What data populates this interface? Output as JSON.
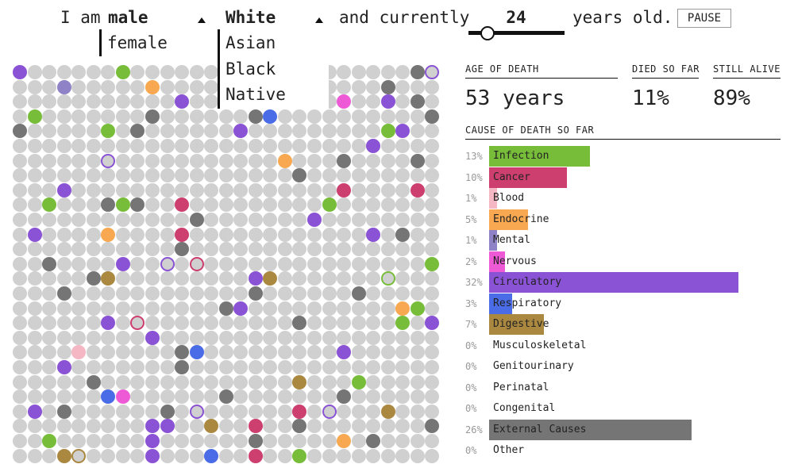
{
  "controls": {
    "prefix": "I am",
    "sex_selected": "male",
    "sex_options": [
      "female"
    ],
    "race_selected": "White",
    "race_options": [
      "Asian",
      "Black",
      "Native"
    ],
    "middle_text": "and currently",
    "age": "24",
    "suffix": "years old.",
    "pause_label": "PAUSE",
    "age_slider_value": 24,
    "age_slider_max": 120
  },
  "stats": {
    "age_label": "AGE OF DEATH",
    "age_value": "53 years",
    "died_label": "DIED SO FAR",
    "died_value": "11%",
    "alive_label": "STILL ALIVE",
    "alive_value": "89%"
  },
  "colors": {
    "Infection": "#77bd3a",
    "Cancer": "#cd3f6e",
    "Blood": "#f4b7c3",
    "Endocrine": "#f7a850",
    "Mental": "#9082c6",
    "Nervous": "#ee5ad6",
    "Circulatory": "#8a52d4",
    "Respiratory": "#4a6ce6",
    "Digestive": "#ab8840",
    "External Causes": "#757575"
  },
  "causes": {
    "title": "CAUSE OF DEATH SO FAR",
    "items": [
      {
        "pct": "13%",
        "name": "Infection",
        "value": 13,
        "color": "#77bd3a"
      },
      {
        "pct": "10%",
        "name": "Cancer",
        "value": 10,
        "color": "#cd3f6e"
      },
      {
        "pct": "1%",
        "name": "Blood",
        "value": 1,
        "color": "#f4b7c3"
      },
      {
        "pct": "5%",
        "name": "Endocrine",
        "value": 5,
        "color": "#f7a850"
      },
      {
        "pct": "1%",
        "name": "Mental",
        "value": 1,
        "color": "#9082c6"
      },
      {
        "pct": "2%",
        "name": "Nervous",
        "value": 2,
        "color": "#ee5ad6"
      },
      {
        "pct": "32%",
        "name": "Circulatory",
        "value": 32,
        "color": "#8a52d4"
      },
      {
        "pct": "3%",
        "name": "Respiratory",
        "value": 3,
        "color": "#4a6ce6"
      },
      {
        "pct": "7%",
        "name": "Digestive",
        "value": 7,
        "color": "#ab8840"
      },
      {
        "pct": "0%",
        "name": "Musculoskeletal",
        "value": 0,
        "color": "#cccccc"
      },
      {
        "pct": "0%",
        "name": "Genitourinary",
        "value": 0,
        "color": "#cccccc"
      },
      {
        "pct": "0%",
        "name": "Perinatal",
        "value": 0,
        "color": "#cccccc"
      },
      {
        "pct": "0%",
        "name": "Congenital",
        "value": 0,
        "color": "#cccccc"
      },
      {
        "pct": "26%",
        "name": "External Causes",
        "value": 26,
        "color": "#757575"
      },
      {
        "pct": "0%",
        "name": "Other",
        "value": 0,
        "color": "#cccccc"
      }
    ]
  },
  "population": {
    "columns": 29,
    "rows": 27,
    "dead_people": [
      {
        "row": 0,
        "col": 0,
        "cause": "Circulatory"
      },
      {
        "row": 0,
        "col": 7,
        "cause": "Infection"
      },
      {
        "row": 0,
        "col": 27,
        "cause": "External Causes"
      },
      {
        "row": 0,
        "col": 28,
        "cause": "Circulatory",
        "ring": true
      },
      {
        "row": 1,
        "col": 3,
        "cause": "Mental"
      },
      {
        "row": 1,
        "col": 9,
        "cause": "Endocrine"
      },
      {
        "row": 1,
        "col": 25,
        "cause": "External Causes"
      },
      {
        "row": 2,
        "col": 11,
        "cause": "Circulatory"
      },
      {
        "row": 2,
        "col": 22,
        "cause": "Nervous"
      },
      {
        "row": 2,
        "col": 25,
        "cause": "Circulatory"
      },
      {
        "row": 2,
        "col": 27,
        "cause": "External Causes"
      },
      {
        "row": 3,
        "col": 1,
        "cause": "Infection"
      },
      {
        "row": 3,
        "col": 9,
        "cause": "External Causes"
      },
      {
        "row": 3,
        "col": 16,
        "cause": "External Causes"
      },
      {
        "row": 3,
        "col": 17,
        "cause": "Respiratory"
      },
      {
        "row": 3,
        "col": 28,
        "cause": "External Causes"
      },
      {
        "row": 4,
        "col": 0,
        "cause": "External Causes"
      },
      {
        "row": 4,
        "col": 6,
        "cause": "Infection"
      },
      {
        "row": 4,
        "col": 8,
        "cause": "External Causes"
      },
      {
        "row": 4,
        "col": 15,
        "cause": "Circulatory"
      },
      {
        "row": 4,
        "col": 25,
        "cause": "Infection"
      },
      {
        "row": 4,
        "col": 26,
        "cause": "Circulatory"
      },
      {
        "row": 5,
        "col": 24,
        "cause": "Circulatory"
      },
      {
        "row": 6,
        "col": 6,
        "cause": "Circulatory",
        "ring": true
      },
      {
        "row": 6,
        "col": 18,
        "cause": "Endocrine"
      },
      {
        "row": 6,
        "col": 22,
        "cause": "External Causes"
      },
      {
        "row": 6,
        "col": 27,
        "cause": "External Causes"
      },
      {
        "row": 7,
        "col": 19,
        "cause": "External Causes"
      },
      {
        "row": 8,
        "col": 3,
        "cause": "Circulatory"
      },
      {
        "row": 8,
        "col": 22,
        "cause": "Cancer"
      },
      {
        "row": 8,
        "col": 27,
        "cause": "Cancer"
      },
      {
        "row": 9,
        "col": 2,
        "cause": "Infection"
      },
      {
        "row": 9,
        "col": 6,
        "cause": "External Causes"
      },
      {
        "row": 9,
        "col": 7,
        "cause": "Infection"
      },
      {
        "row": 9,
        "col": 8,
        "cause": "External Causes"
      },
      {
        "row": 9,
        "col": 11,
        "cause": "Cancer"
      },
      {
        "row": 9,
        "col": 21,
        "cause": "Infection"
      },
      {
        "row": 10,
        "col": 12,
        "cause": "External Causes"
      },
      {
        "row": 10,
        "col": 20,
        "cause": "Circulatory"
      },
      {
        "row": 11,
        "col": 1,
        "cause": "Circulatory"
      },
      {
        "row": 11,
        "col": 6,
        "cause": "Endocrine"
      },
      {
        "row": 11,
        "col": 11,
        "cause": "Cancer"
      },
      {
        "row": 11,
        "col": 24,
        "cause": "Circulatory"
      },
      {
        "row": 11,
        "col": 26,
        "cause": "External Causes"
      },
      {
        "row": 12,
        "col": 11,
        "cause": "External Causes"
      },
      {
        "row": 13,
        "col": 2,
        "cause": "External Causes"
      },
      {
        "row": 13,
        "col": 7,
        "cause": "Circulatory"
      },
      {
        "row": 13,
        "col": 10,
        "cause": "Circulatory",
        "ring": true
      },
      {
        "row": 13,
        "col": 12,
        "cause": "Cancer",
        "ring": true
      },
      {
        "row": 13,
        "col": 28,
        "cause": "Infection"
      },
      {
        "row": 14,
        "col": 5,
        "cause": "External Causes"
      },
      {
        "row": 14,
        "col": 6,
        "cause": "Digestive"
      },
      {
        "row": 14,
        "col": 16,
        "cause": "Circulatory"
      },
      {
        "row": 14,
        "col": 17,
        "cause": "Digestive"
      },
      {
        "row": 14,
        "col": 25,
        "cause": "Infection",
        "ring": true
      },
      {
        "row": 15,
        "col": 3,
        "cause": "External Causes"
      },
      {
        "row": 15,
        "col": 16,
        "cause": "External Causes"
      },
      {
        "row": 15,
        "col": 23,
        "cause": "External Causes"
      },
      {
        "row": 16,
        "col": 14,
        "cause": "External Causes"
      },
      {
        "row": 16,
        "col": 15,
        "cause": "Circulatory"
      },
      {
        "row": 16,
        "col": 26,
        "cause": "Endocrine"
      },
      {
        "row": 16,
        "col": 27,
        "cause": "Infection"
      },
      {
        "row": 17,
        "col": 6,
        "cause": "Circulatory"
      },
      {
        "row": 17,
        "col": 8,
        "cause": "Cancer",
        "ring": true
      },
      {
        "row": 17,
        "col": 19,
        "cause": "External Causes"
      },
      {
        "row": 17,
        "col": 26,
        "cause": "Infection"
      },
      {
        "row": 17,
        "col": 28,
        "cause": "Circulatory"
      },
      {
        "row": 18,
        "col": 9,
        "cause": "Circulatory"
      },
      {
        "row": 19,
        "col": 4,
        "cause": "Blood"
      },
      {
        "row": 19,
        "col": 11,
        "cause": "External Causes"
      },
      {
        "row": 19,
        "col": 12,
        "cause": "Respiratory"
      },
      {
        "row": 19,
        "col": 22,
        "cause": "Circulatory"
      },
      {
        "row": 20,
        "col": 3,
        "cause": "Circulatory"
      },
      {
        "row": 20,
        "col": 11,
        "cause": "External Causes"
      },
      {
        "row": 21,
        "col": 5,
        "cause": "External Causes"
      },
      {
        "row": 21,
        "col": 19,
        "cause": "Digestive"
      },
      {
        "row": 21,
        "col": 23,
        "cause": "Infection"
      },
      {
        "row": 22,
        "col": 6,
        "cause": "Respiratory"
      },
      {
        "row": 22,
        "col": 7,
        "cause": "Nervous"
      },
      {
        "row": 22,
        "col": 14,
        "cause": "External Causes"
      },
      {
        "row": 22,
        "col": 22,
        "cause": "External Causes"
      },
      {
        "row": 23,
        "col": 1,
        "cause": "Circulatory"
      },
      {
        "row": 23,
        "col": 3,
        "cause": "External Causes"
      },
      {
        "row": 23,
        "col": 10,
        "cause": "External Causes"
      },
      {
        "row": 23,
        "col": 12,
        "cause": "Circulatory",
        "ring": true
      },
      {
        "row": 23,
        "col": 19,
        "cause": "Cancer"
      },
      {
        "row": 23,
        "col": 21,
        "cause": "Circulatory",
        "ring": true
      },
      {
        "row": 23,
        "col": 25,
        "cause": "Digestive"
      },
      {
        "row": 24,
        "col": 9,
        "cause": "Circulatory"
      },
      {
        "row": 24,
        "col": 10,
        "cause": "Circulatory"
      },
      {
        "row": 24,
        "col": 13,
        "cause": "Digestive"
      },
      {
        "row": 24,
        "col": 16,
        "cause": "Cancer"
      },
      {
        "row": 24,
        "col": 19,
        "cause": "External Causes"
      },
      {
        "row": 24,
        "col": 28,
        "cause": "External Causes"
      },
      {
        "row": 25,
        "col": 2,
        "cause": "Infection"
      },
      {
        "row": 25,
        "col": 9,
        "cause": "Circulatory"
      },
      {
        "row": 25,
        "col": 16,
        "cause": "External Causes"
      },
      {
        "row": 25,
        "col": 22,
        "cause": "Endocrine"
      },
      {
        "row": 25,
        "col": 24,
        "cause": "External Causes"
      },
      {
        "row": 26,
        "col": 3,
        "cause": "Digestive"
      },
      {
        "row": 26,
        "col": 4,
        "cause": "Digestive",
        "ring": true
      },
      {
        "row": 26,
        "col": 9,
        "cause": "Circulatory"
      },
      {
        "row": 26,
        "col": 13,
        "cause": "Respiratory"
      },
      {
        "row": 26,
        "col": 16,
        "cause": "Cancer"
      },
      {
        "row": 26,
        "col": 19,
        "cause": "Infection"
      }
    ]
  }
}
